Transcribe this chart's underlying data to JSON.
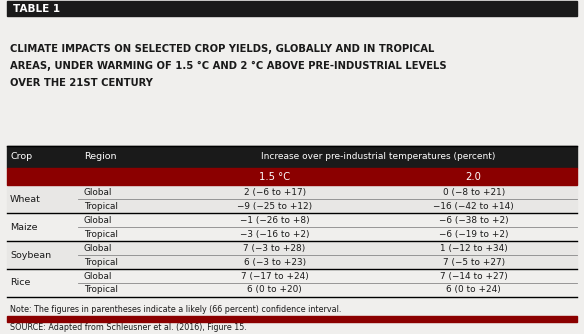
{
  "table_label": "TABLE 1",
  "title_lines": [
    "CLIMATE IMPACTS ON SELECTED CROP YIELDS, GLOBALLY AND IN TROPICAL",
    "AREAS, UNDER WARMING OF 1.5 °C AND 2 °C ABOVE PRE-INDUSTRIAL LEVELS",
    "OVER THE 21ST CENTURY"
  ],
  "rows": [
    [
      "Wheat",
      "Global",
      "2 (−6 to +17)",
      "0 (−8 to +21)"
    ],
    [
      "Wheat",
      "Tropical",
      "−9 (−25 to +12)",
      "−16 (−42 to +14)"
    ],
    [
      "Maize",
      "Global",
      "−1 (−26 to +8)",
      "−6 (−38 to +2)"
    ],
    [
      "Maize",
      "Tropical",
      "−3 (−16 to +2)",
      "−6 (−19 to +2)"
    ],
    [
      "Soybean",
      "Global",
      "7 (−3 to +28)",
      "1 (−12 to +34)"
    ],
    [
      "Soybean",
      "Tropical",
      "6 (−3 to +23)",
      "7 (−5 to +27)"
    ],
    [
      "Rice",
      "Global",
      "7 (−17 to +24)",
      "7 (−14 to +27)"
    ],
    [
      "Rice",
      "Tropical",
      "6 (0 to +20)",
      "6 (0 to +24)"
    ]
  ],
  "note": "Note: The figures in parentheses indicate a likely (66 percent) confidence interval.",
  "source": "SOURCE: Adapted from Schleusner et al. (2016), Figure 15.",
  "bg_color": "#f0efed",
  "header_bg": "#1a1a1a",
  "subheader_bg": "#8b0000",
  "header_text_color": "#ffffff",
  "table_label_bg": "#1a1a1a",
  "table_label_text": "#ffffff",
  "title_text_color": "#1a1a1a",
  "row_line_color": "#888888",
  "group_line_color": "#000000"
}
